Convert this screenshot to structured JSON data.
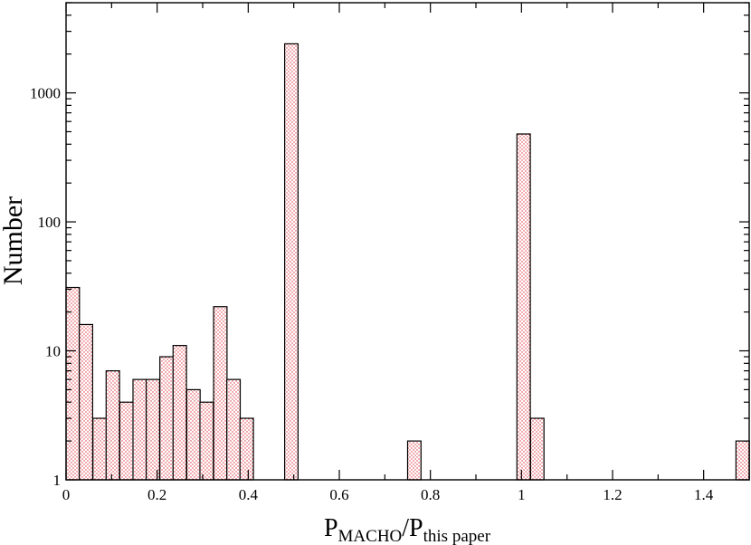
{
  "chart_data": {
    "type": "bar",
    "xlabel": {
      "main": "P",
      "sub1": "MACHO",
      "sep": "/P",
      "sub2": "this paper"
    },
    "ylabel": "Number",
    "xlim": [
      0,
      1.5
    ],
    "ylim": [
      1,
      5000
    ],
    "yscale": "log",
    "grid": false,
    "bin_width": 0.0294,
    "bars": [
      {
        "x0": 0.0,
        "value": 31
      },
      {
        "x0": 0.029,
        "value": 16
      },
      {
        "x0": 0.059,
        "value": 3
      },
      {
        "x0": 0.088,
        "value": 7
      },
      {
        "x0": 0.118,
        "value": 4
      },
      {
        "x0": 0.147,
        "value": 6
      },
      {
        "x0": 0.176,
        "value": 6
      },
      {
        "x0": 0.206,
        "value": 9
      },
      {
        "x0": 0.235,
        "value": 11
      },
      {
        "x0": 0.265,
        "value": 5
      },
      {
        "x0": 0.294,
        "value": 4
      },
      {
        "x0": 0.324,
        "value": 22
      },
      {
        "x0": 0.353,
        "value": 6
      },
      {
        "x0": 0.382,
        "value": 3
      },
      {
        "x0": 0.48,
        "value": 2400
      },
      {
        "x0": 0.75,
        "value": 2
      },
      {
        "x0": 0.99,
        "value": 480
      },
      {
        "x0": 1.02,
        "value": 3
      },
      {
        "x0": 1.471,
        "value": 2
      }
    ],
    "xticks": [
      {
        "v": 0,
        "label": "0"
      },
      {
        "v": 0.2,
        "label": "0.2"
      },
      {
        "v": 0.4,
        "label": "0.4"
      },
      {
        "v": 0.6,
        "label": "0.6"
      },
      {
        "v": 0.8,
        "label": "0.8"
      },
      {
        "v": 1.0,
        "label": "1"
      },
      {
        "v": 1.2,
        "label": "1.2"
      },
      {
        "v": 1.4,
        "label": "1.4"
      }
    ],
    "yticks": [
      {
        "v": 1,
        "label": "1"
      },
      {
        "v": 10,
        "label": "10"
      },
      {
        "v": 100,
        "label": "100"
      },
      {
        "v": 1000,
        "label": "1000"
      }
    ],
    "colors": {
      "bar_fill": "#ffffff",
      "bar_dots": "#e0303a",
      "bar_edge": "#000000",
      "axis": "#000000"
    }
  }
}
